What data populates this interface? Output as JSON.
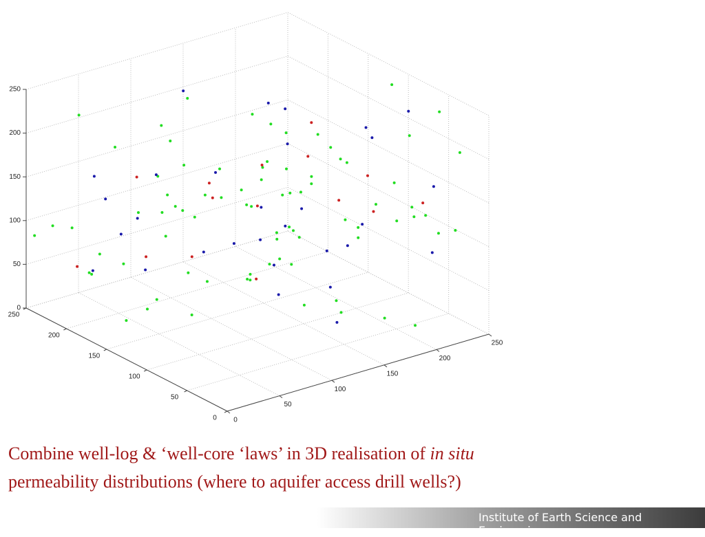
{
  "chart_data": {
    "type": "scatter3d",
    "xlim": [
      0,
      250
    ],
    "xticks": [
      0,
      50,
      100,
      150,
      200,
      250
    ],
    "ylim": [
      0,
      250
    ],
    "yticks": [
      0,
      50,
      100,
      150,
      200,
      250
    ],
    "zlim": [
      0,
      250
    ],
    "zticks": [
      0,
      50,
      100,
      150,
      200,
      250
    ],
    "grid": true,
    "series": [
      {
        "color": "#22dd22",
        "x": [
          12,
          45,
          78,
          103,
          130,
          155,
          180,
          205,
          230,
          248,
          20,
          60,
          90,
          118,
          140,
          170,
          195,
          222,
          240,
          8,
          35,
          70,
          95,
          125,
          150,
          178,
          210,
          235,
          15,
          50,
          85,
          110,
          138,
          162,
          188,
          215,
          245,
          28,
          65,
          98,
          5,
          40,
          72,
          100,
          128,
          158,
          185,
          212,
          238,
          18,
          55,
          88,
          115,
          145,
          168,
          198,
          225,
          30,
          62,
          92,
          120,
          148,
          175,
          202,
          228,
          10,
          48,
          80,
          108,
          135,
          165,
          192,
          218,
          242,
          25,
          58,
          96,
          122,
          152,
          182
        ],
        "y": [
          200,
          30,
          150,
          90,
          240,
          60,
          180,
          120,
          10,
          210,
          70,
          160,
          40,
          230,
          100,
          190,
          20,
          140,
          80,
          250,
          110,
          220,
          50,
          170,
          130,
          5,
          200,
          95,
          145,
          35,
          185,
          65,
          235,
          115,
          15,
          175,
          55,
          205,
          125,
          85,
          165,
          245,
          25,
          155,
          75,
          215,
          45,
          135,
          105,
          195,
          10,
          225,
          60,
          160,
          90,
          240,
          30,
          120,
          180,
          70,
          210,
          140,
          20,
          100,
          50,
          230,
          150,
          80,
          190,
          40,
          110,
          170,
          0,
          130,
          60,
          215,
          100,
          245,
          35,
          175
        ],
        "z": [
          240,
          120,
          60,
          200,
          150,
          30,
          180,
          90,
          210,
          130,
          70,
          230,
          160,
          50,
          110,
          190,
          20,
          140,
          100,
          80,
          170,
          40,
          220,
          120,
          60,
          250,
          150,
          90,
          30,
          200,
          130,
          180,
          70,
          10,
          160,
          110,
          230,
          50,
          140,
          190,
          100,
          80,
          210,
          40,
          170,
          120,
          20,
          150,
          240,
          60,
          180,
          90,
          130,
          30,
          200,
          70,
          110,
          160,
          10,
          220,
          140,
          50,
          190,
          80,
          120,
          100,
          40,
          170,
          230,
          60,
          150,
          20,
          130,
          90,
          210,
          180,
          70,
          110,
          140,
          50
        ]
      },
      {
        "color": "#1a1aaa",
        "x": [
          22,
          58,
          91,
          126,
          160,
          193,
          227,
          14,
          47,
          83,
          117,
          151,
          186,
          219,
          246,
          33,
          68,
          104,
          137,
          171,
          205,
          238,
          9,
          42,
          76,
          112,
          146,
          179,
          213,
          244
        ],
        "y": [
          180,
          90,
          230,
          40,
          150,
          200,
          70,
          120,
          20,
          240,
          110,
          60,
          170,
          30,
          140,
          210,
          80,
          190,
          50,
          130,
          10,
          160,
          100,
          220,
          35,
          175,
          115,
          65,
          205,
          145
        ],
        "z": [
          150,
          210,
          80,
          120,
          40,
          190,
          230,
          100,
          170,
          60,
          140,
          20,
          200,
          90,
          160,
          50,
          130,
          240,
          70,
          110,
          180,
          30,
          220,
          150,
          90,
          60,
          200,
          120,
          40,
          170
        ]
      },
      {
        "color": "#cc2222",
        "x": [
          30,
          75,
          120,
          165,
          210,
          245,
          52,
          98,
          143,
          188,
          232,
          18,
          64,
          109,
          154
        ],
        "y": [
          140,
          60,
          200,
          110,
          30,
          180,
          90,
          240,
          150,
          70,
          120,
          210,
          40,
          160,
          100
        ],
        "z": [
          100,
          180,
          40,
          220,
          150,
          70,
          200,
          120,
          30,
          170,
          90,
          60,
          240,
          130,
          190
        ]
      }
    ]
  },
  "caption": {
    "text_before": "Combine well-log & ‘well-core ‘laws’ in 3D realisation of ",
    "italic": "in situ",
    "text_after": "permeability distributions (where to aquifer access drill wells?)"
  },
  "footer": {
    "institute": "Institute of Earth Science and Engineering"
  }
}
